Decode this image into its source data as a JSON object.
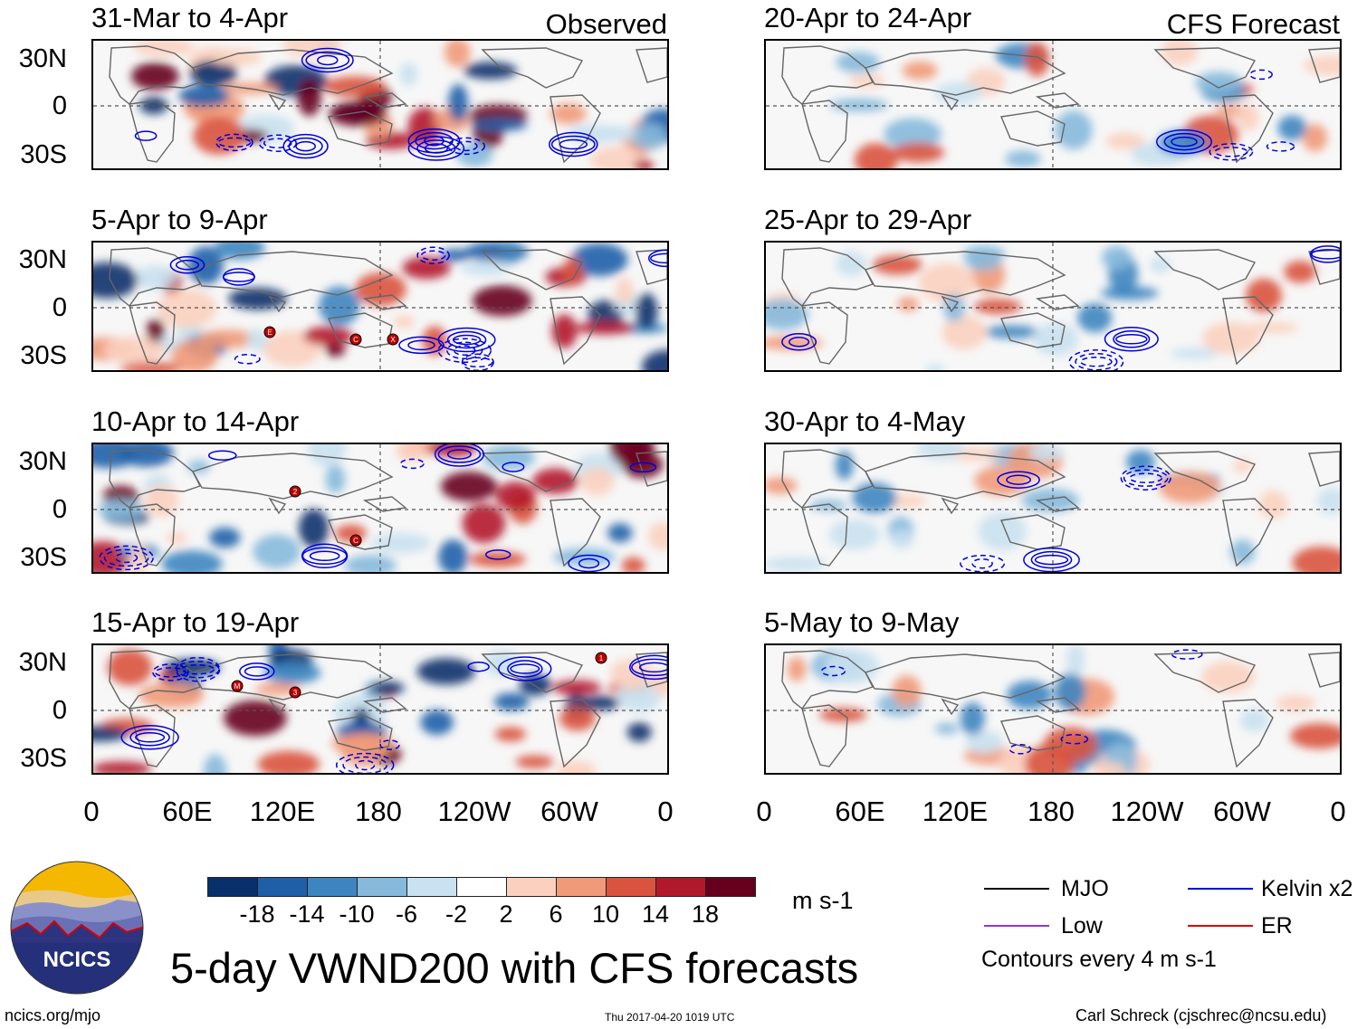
{
  "columns": {
    "left_header": "Observed",
    "right_header": "CFS Forecast"
  },
  "panels_observed": [
    {
      "title": "31-Mar to 4-Apr"
    },
    {
      "title": "5-Apr to 9-Apr"
    },
    {
      "title": "10-Apr to 14-Apr"
    },
    {
      "title": "15-Apr to 19-Apr"
    }
  ],
  "panels_forecast": [
    {
      "title": "20-Apr to 24-Apr"
    },
    {
      "title": "25-Apr to 29-Apr"
    },
    {
      "title": "30-Apr to 4-May"
    },
    {
      "title": "5-May to 9-May"
    }
  ],
  "lat_labels": [
    "30N",
    "0",
    "30S"
  ],
  "lon_labels": [
    "0",
    "60E",
    "120E",
    "180",
    "120W",
    "60W",
    "0"
  ],
  "colorbar": {
    "labels": [
      "-18",
      "-14",
      "-10",
      "-6",
      "-2",
      "2",
      "6",
      "10",
      "14",
      "18"
    ],
    "colors": [
      "#08306b",
      "#1f5fa8",
      "#3d85c0",
      "#86b9dc",
      "#c9e1f0",
      "#ffffff",
      "#fbd0bf",
      "#f19a79",
      "#d9533f",
      "#b2182b",
      "#67001f"
    ],
    "units": "m s-1"
  },
  "legend": {
    "items": [
      {
        "label": "MJO",
        "color": "#000000"
      },
      {
        "label": "Kelvin x2",
        "color": "#0000dd"
      },
      {
        "label": "Low",
        "color": "#9933cc"
      },
      {
        "label": "ER",
        "color": "#dd0000"
      }
    ],
    "note": "Contours every 4 m s-1"
  },
  "title": "5-day VWND200 with CFS forecasts",
  "logo_text": "NCICS",
  "footer": {
    "url": "ncics.org/mjo",
    "timestamp": "Thu 2017-04-20 1019 UTC",
    "author": "Carl Schreck (cjschrec@ncsu.edu)"
  },
  "storm_markers": [
    {
      "panel": 1,
      "label": "E"
    },
    {
      "panel": 1,
      "label": "C"
    },
    {
      "panel": 1,
      "label": "X"
    },
    {
      "panel": 2,
      "label": "2"
    },
    {
      "panel": 2,
      "label": "C"
    },
    {
      "panel": 3,
      "label": "M"
    },
    {
      "panel": 3,
      "label": "3"
    },
    {
      "panel": 3,
      "label": "1"
    }
  ]
}
